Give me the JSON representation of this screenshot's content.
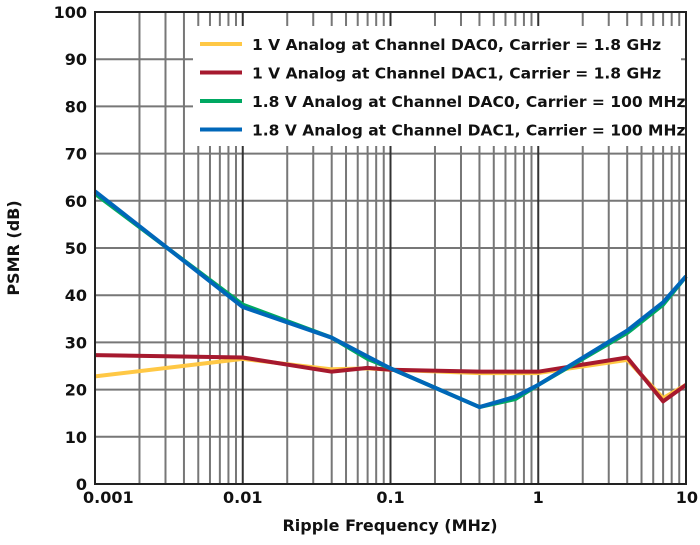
{
  "chart_data": {
    "type": "line",
    "title": "",
    "xlabel": "Ripple Frequency (MHz)",
    "ylabel": "PSMR (dB)",
    "xscale": "log",
    "xlim": [
      0.001,
      10
    ],
    "ylim": [
      0,
      100
    ],
    "grid": true,
    "legend_position": "top-right",
    "x_tick_labels": [
      "0.001",
      "0.01",
      "0.1",
      "1",
      "10"
    ],
    "x_ticks": [
      0.001,
      0.01,
      0.1,
      1,
      10
    ],
    "y_ticks": [
      0,
      10,
      20,
      30,
      40,
      50,
      60,
      70,
      80,
      90,
      100
    ],
    "x": [
      0.001,
      0.01,
      0.04,
      0.07,
      0.1,
      0.4,
      0.7,
      1,
      4,
      7,
      10
    ],
    "series": [
      {
        "name": "1 V Analog at Channel DAC0, Carrier = 1.8 GHz",
        "color": "#FFC845",
        "values": [
          22.8,
          26.5,
          24.3,
          24.5,
          24.2,
          23.5,
          23.5,
          23.5,
          26.3,
          18.2,
          21
        ]
      },
      {
        "name": "1 V Analog at Channel DAC1, Carrier = 1.8 GHz",
        "color": "#A6192E",
        "values": [
          27.3,
          26.8,
          23.8,
          24.6,
          24.2,
          23.8,
          23.8,
          23.8,
          26.8,
          17.5,
          21
        ]
      },
      {
        "name": "1.8 V Analog at Channel DAC0, Carrier = 100 MHz",
        "color": "#00A862",
        "values": [
          61.5,
          38,
          31,
          26.5,
          24.5,
          16.3,
          18,
          21,
          32,
          38,
          44
        ]
      },
      {
        "name": "1.8 V Analog at Channel DAC1, Carrier = 100 MHz",
        "color": "#0067B9",
        "values": [
          62,
          37.5,
          31,
          27,
          24.5,
          16.3,
          18.5,
          21,
          32.5,
          38.5,
          44
        ]
      }
    ]
  }
}
